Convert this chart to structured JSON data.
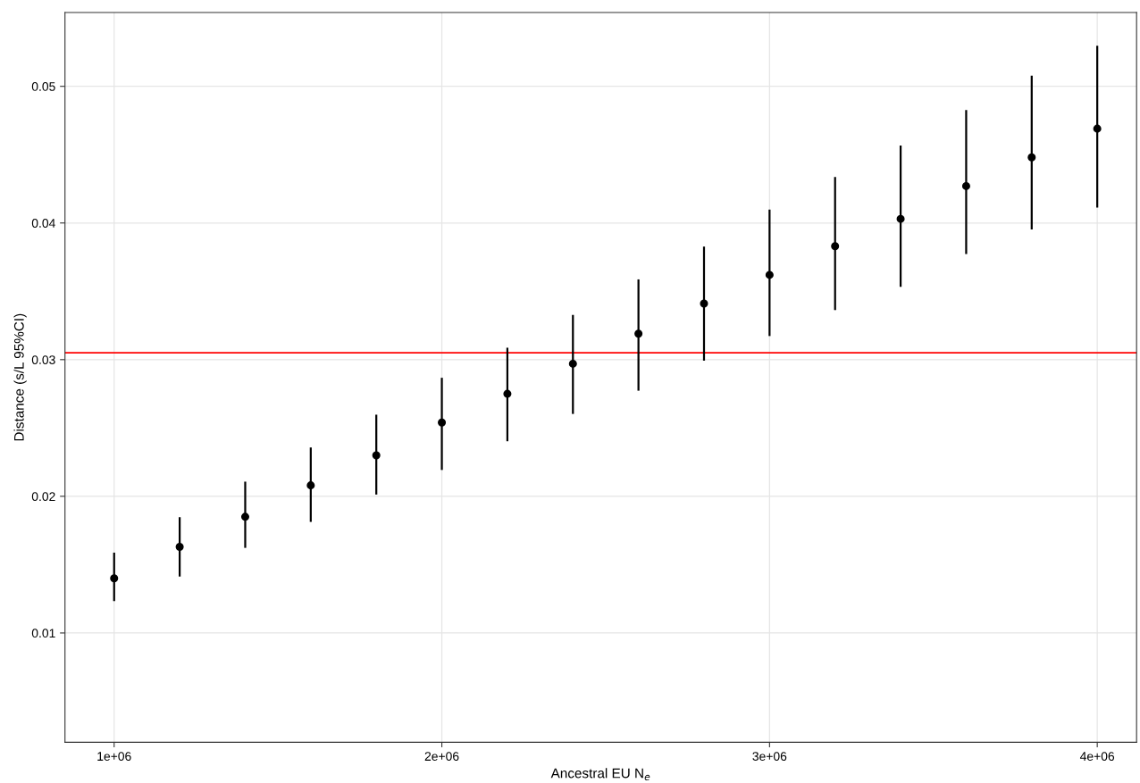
{
  "chart_data": {
    "type": "scatter",
    "xlabel": "Ancestral EU N$_{e}$",
    "ylabel": "Distance (s/L 95%CI)",
    "x": [
      1000000,
      1200000,
      1400000,
      1600000,
      1800000,
      2000000,
      2200000,
      2400000,
      2600000,
      2800000,
      3000000,
      3200000,
      3400000,
      3600000,
      3800000,
      4000000
    ],
    "series": [
      {
        "color": "#000000",
        "values": [
          0.014,
          0.0163,
          0.0185,
          0.0208,
          0.023,
          0.0254,
          0.0275,
          0.0297,
          0.0319,
          0.0341,
          0.0362,
          0.0383,
          0.0403,
          0.0427,
          0.0448,
          0.0469
        ],
        "errors": [
          [
            0.0124,
            0.0158
          ],
          [
            0.0142,
            0.0184
          ],
          [
            0.0163,
            0.021
          ],
          [
            0.0182,
            0.0235
          ],
          [
            0.0202,
            0.0259
          ],
          [
            0.022,
            0.0286
          ],
          [
            0.0241,
            0.0308
          ],
          [
            0.0261,
            0.0332
          ],
          [
            0.0278,
            0.0358
          ],
          [
            0.03,
            0.0382
          ],
          [
            0.0318,
            0.0409
          ],
          [
            0.0337,
            0.0433
          ],
          [
            0.0354,
            0.0456
          ],
          [
            0.0378,
            0.0482
          ],
          [
            0.0396,
            0.0507
          ],
          [
            0.0412,
            0.0529
          ]
        ]
      }
    ],
    "marker": "circle",
    "xlim": [
      850000,
      4120000
    ],
    "ylim": [
      0.002,
      0.0554
    ],
    "xticks": [
      {
        "value": 1000000,
        "label": "1e+06"
      },
      {
        "value": 2000000,
        "label": "2e+06"
      },
      {
        "value": 3000000,
        "label": "3e+06"
      },
      {
        "value": 4000000,
        "label": "4e+06"
      }
    ],
    "yticks": [
      0.01,
      0.02,
      0.03,
      0.04,
      0.05
    ],
    "ref_lines": [
      {
        "axis": "y",
        "value": 0.0305,
        "color": "#ff0000"
      }
    ],
    "grid": true
  }
}
